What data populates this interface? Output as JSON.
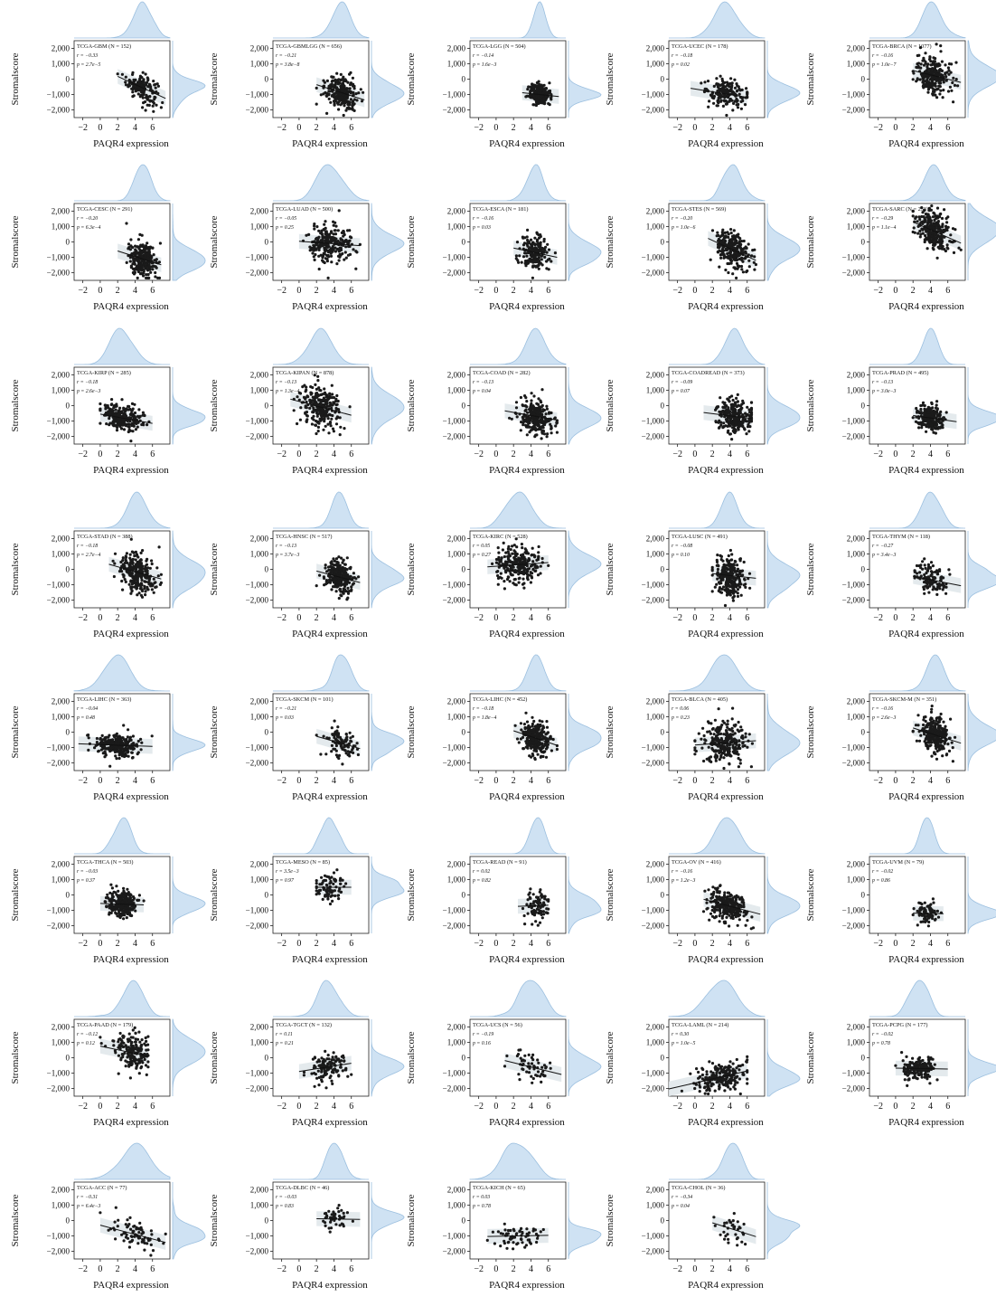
{
  "shared": {
    "ylabel": "Stromalscore",
    "xlabel": "PAQR4 expression",
    "xticks": [
      "−2",
      "0",
      "2",
      "4",
      "6"
    ],
    "yticks": [
      "2,000",
      "1,000",
      "0",
      "−1,000",
      "−2,000"
    ],
    "colors": {
      "point": "#1a1a1a",
      "band": "#dfe6ea",
      "density_fill": "#cfe2f3",
      "density_stroke": "#9bbfdf",
      "line": "#111111"
    }
  },
  "chart_data": [
    {
      "type": "scatter",
      "title": "TCGA-GBM",
      "n": "(N = 152)",
      "r": "r = −0.33",
      "p": "p = 2.7e−5",
      "xlim": [
        -3,
        8
      ],
      "ylim": [
        -2500,
        2500
      ],
      "x_range": [
        2,
        7.5
      ],
      "x_mean": 4.8,
      "x_sd": 0.9,
      "y_mean": -500,
      "y_sd": 450,
      "slope": -260,
      "intercept": 700
    },
    {
      "type": "scatter",
      "title": "TCGA-GBMLGG",
      "n": "(N = 656)",
      "r": "r = −0.21",
      "p": "p = 3.8e−8",
      "xlim": [
        -3,
        8
      ],
      "ylim": [
        -2500,
        2500
      ],
      "x_range": [
        2,
        7.5
      ],
      "x_mean": 4.8,
      "x_sd": 0.9,
      "y_mean": -800,
      "y_sd": 550,
      "slope": -180,
      "intercept": 0
    },
    {
      "type": "scatter",
      "title": "TCGA-LGG",
      "n": "(N = 504)",
      "r": "r = −0.14",
      "p": "p = 1.6e−3",
      "xlim": [
        -3,
        8
      ],
      "ylim": [
        -2500,
        2500
      ],
      "x_range": [
        3,
        7.2
      ],
      "x_mean": 5.0,
      "x_sd": 0.6,
      "y_mean": -1000,
      "y_sd": 320,
      "slope": -60,
      "intercept": -700
    },
    {
      "type": "scatter",
      "title": "TCGA-UCEC",
      "n": "(N = 178)",
      "r": "r = −0.18",
      "p": "p = 0.02",
      "xlim": [
        -3,
        8
      ],
      "ylim": [
        -2500,
        2500
      ],
      "x_range": [
        -0.5,
        6
      ],
      "x_mean": 3.5,
      "x_sd": 1.2,
      "y_mean": -950,
      "y_sd": 450,
      "slope": -90,
      "intercept": -640
    },
    {
      "type": "scatter",
      "title": "TCGA-BRCA",
      "n": "(N = 1077)",
      "r": "r = −0.16",
      "p": "p = 1.0e−7",
      "xlim": [
        -3,
        8
      ],
      "ylim": [
        -2500,
        2500
      ],
      "x_range": [
        2,
        7.5
      ],
      "x_mean": 4.2,
      "x_sd": 1.0,
      "y_mean": 250,
      "y_sd": 650,
      "slope": -140,
      "intercept": 840
    },
    {
      "type": "scatter",
      "title": "TCGA-CESC",
      "n": "(N = 291)",
      "r": "r = −0.20",
      "p": "p = 6.3e−4",
      "xlim": [
        -3,
        8
      ],
      "ylim": [
        -2500,
        2500
      ],
      "x_range": [
        2,
        7
      ],
      "x_mean": 4.8,
      "x_sd": 0.8,
      "y_mean": -1100,
      "y_sd": 550,
      "slope": -180,
      "intercept": -230
    },
    {
      "type": "scatter",
      "title": "TCGA-LUAD",
      "n": "(N = 500)",
      "r": "r = −0.05",
      "p": "p = 0.25",
      "xlim": [
        -3,
        8
      ],
      "ylim": [
        -2500,
        2500
      ],
      "x_range": [
        0,
        7
      ],
      "x_mean": 3.5,
      "x_sd": 1.2,
      "y_mean": -100,
      "y_sd": 550,
      "slope": -40,
      "intercept": 40
    },
    {
      "type": "scatter",
      "title": "TCGA-ESCA",
      "n": "(N = 181)",
      "r": "r = −0.16",
      "p": "p = 0.03",
      "xlim": [
        -3,
        8
      ],
      "ylim": [
        -2500,
        2500
      ],
      "x_range": [
        2,
        7
      ],
      "x_mean": 4.5,
      "x_sd": 0.8,
      "y_mean": -700,
      "y_sd": 550,
      "slope": -120,
      "intercept": -160
    },
    {
      "type": "scatter",
      "title": "TCGA-STES",
      "n": "(N = 569)",
      "r": "r = −0.20",
      "p": "p = 1.0e−6",
      "xlim": [
        -3,
        8
      ],
      "ylim": [
        -2500,
        2500
      ],
      "x_range": [
        1.5,
        7
      ],
      "x_mean": 4.3,
      "x_sd": 0.9,
      "y_mean": -500,
      "y_sd": 650,
      "slope": -260,
      "intercept": 620
    },
    {
      "type": "scatter",
      "title": "TCGA-SARC",
      "n": "(N = 258)",
      "r": "r = −0.29",
      "p": "p = 1.1e−4",
      "xlim": [
        -3,
        8
      ],
      "ylim": [
        -2500,
        2500
      ],
      "x_range": [
        2,
        7.5
      ],
      "x_mean": 4.4,
      "x_sd": 1.0,
      "y_mean": 700,
      "y_sd": 600,
      "slope": -250,
      "intercept": 1800
    },
    {
      "type": "scatter",
      "title": "TCGA-KIRP",
      "n": "(N = 285)",
      "r": "r = −0.18",
      "p": "p = 2.6e−3",
      "xlim": [
        -3,
        8
      ],
      "ylim": [
        -2500,
        2500
      ],
      "x_range": [
        0,
        6
      ],
      "x_mean": 2.5,
      "x_sd": 1.1,
      "y_mean": -800,
      "y_sd": 400,
      "slope": -100,
      "intercept": -550
    },
    {
      "type": "scatter",
      "title": "TCGA-KIPAN",
      "n": "(N = 878)",
      "r": "r = −0.13",
      "p": "p = 1.3e−4",
      "xlim": [
        -3,
        8
      ],
      "ylim": [
        -2500,
        2500
      ],
      "x_range": [
        -1,
        6
      ],
      "x_mean": 2.5,
      "x_sd": 1.2,
      "y_mean": -100,
      "y_sd": 700,
      "slope": -150,
      "intercept": 275
    },
    {
      "type": "scatter",
      "title": "TCGA-COAD",
      "n": "(N = 282)",
      "r": "r = −0.13",
      "p": "p = 0.04",
      "xlim": [
        -3,
        8
      ],
      "ylim": [
        -2500,
        2500
      ],
      "x_range": [
        1,
        7
      ],
      "x_mean": 4.6,
      "x_sd": 1.0,
      "y_mean": -700,
      "y_sd": 550,
      "slope": -100,
      "intercept": -240
    },
    {
      "type": "scatter",
      "title": "TCGA-COADREAD",
      "n": "(N = 373)",
      "r": "r = −0.09",
      "p": "p = 0.07",
      "xlim": [
        -3,
        8
      ],
      "ylim": [
        -2500,
        2500
      ],
      "x_range": [
        1,
        6.5
      ],
      "x_mean": 4.6,
      "x_sd": 1.0,
      "y_mean": -700,
      "y_sd": 550,
      "slope": -70,
      "intercept": -380
    },
    {
      "type": "scatter",
      "title": "TCGA-PRAD",
      "n": "(N = 495)",
      "r": "r = −0.13",
      "p": "p = 3.0e−3",
      "xlim": [
        -3,
        8
      ],
      "ylim": [
        -2500,
        2500
      ],
      "x_range": [
        2,
        7
      ],
      "x_mean": 4.0,
      "x_sd": 0.8,
      "y_mean": -800,
      "y_sd": 350,
      "slope": -80,
      "intercept": -480
    },
    {
      "type": "scatter",
      "title": "TCGA-STAD",
      "n": "(N = 388)",
      "r": "r = −0.18",
      "p": "p = 2.7e−4",
      "xlim": [
        -3,
        8
      ],
      "ylim": [
        -2500,
        2500
      ],
      "x_range": [
        1,
        7
      ],
      "x_mean": 4.3,
      "x_sd": 1.0,
      "y_mean": -200,
      "y_sd": 650,
      "slope": -160,
      "intercept": 490
    },
    {
      "type": "scatter",
      "title": "TCGA-HNSC",
      "n": "(N = 517)",
      "r": "r = −0.13",
      "p": "p = 3.7e−3",
      "xlim": [
        -3,
        8
      ],
      "ylim": [
        -2500,
        2500
      ],
      "x_range": [
        2,
        7
      ],
      "x_mean": 4.6,
      "x_sd": 0.8,
      "y_mean": -500,
      "y_sd": 550,
      "slope": -150,
      "intercept": 190
    },
    {
      "type": "scatter",
      "title": "TCGA-KIRC",
      "n": "(N = 528)",
      "r": "r = 0.05",
      "p": "p = 0.27",
      "xlim": [
        -3,
        8
      ],
      "ylim": [
        -2500,
        2500
      ],
      "x_range": [
        -1,
        6
      ],
      "x_mean": 2.5,
      "x_sd": 1.2,
      "y_mean": 300,
      "y_sd": 550,
      "slope": 40,
      "intercept": 200
    },
    {
      "type": "scatter",
      "title": "TCGA-LUSC",
      "n": "(N = 491)",
      "r": "r = −0.08",
      "p": "p = 0.10",
      "xlim": [
        -3,
        8
      ],
      "ylim": [
        -2500,
        2500
      ],
      "x_range": [
        2,
        7
      ],
      "x_mean": 4.0,
      "x_sd": 0.8,
      "y_mean": -400,
      "y_sd": 650,
      "slope": -60,
      "intercept": -160
    },
    {
      "type": "scatter",
      "title": "TCGA-THYM",
      "n": "(N = 118)",
      "r": "r = −0.27",
      "p": "p = 3.4e−3",
      "xlim": [
        -3,
        8
      ],
      "ylim": [
        -2500,
        2500
      ],
      "x_range": [
        2,
        7.5
      ],
      "x_mean": 4.2,
      "x_sd": 1.0,
      "y_mean": -700,
      "y_sd": 450,
      "slope": -110,
      "intercept": -240
    },
    {
      "type": "scatter",
      "title": "TCGA-LIHC",
      "n": "(N = 363)",
      "r": "r = −0.04",
      "p": "p = 0.48",
      "xlim": [
        -3,
        8
      ],
      "ylim": [
        -2500,
        2500
      ],
      "x_range": [
        -2.5,
        6
      ],
      "x_mean": 2.0,
      "x_sd": 1.3,
      "y_mean": -850,
      "y_sd": 350,
      "slope": -20,
      "intercept": -810
    },
    {
      "type": "scatter",
      "title": "TCGA-SKCM",
      "n": "(N = 101)",
      "r": "r = −0.21",
      "p": "p = 0.03",
      "xlim": [
        -3,
        8
      ],
      "ylim": [
        -2500,
        2500
      ],
      "x_range": [
        2,
        7
      ],
      "x_mean": 4.7,
      "x_sd": 0.9,
      "y_mean": -700,
      "y_sd": 450,
      "slope": -160,
      "intercept": 50
    },
    {
      "type": "scatter",
      "title": "TCGA-LIHC",
      "n": "(N = 452)",
      "r": "r = −0.18",
      "p": "p = 1.8e−4",
      "xlim": [
        -3,
        8
      ],
      "ylim": [
        -2500,
        2500
      ],
      "x_range": [
        2,
        7
      ],
      "x_mean": 4.6,
      "x_sd": 0.8,
      "y_mean": -400,
      "y_sd": 550,
      "slope": -190,
      "intercept": 470
    },
    {
      "type": "scatter",
      "title": "TCGA-BLCA",
      "n": "(N = 405)",
      "r": "r = 0.06",
      "p": "p = 0.23",
      "xlim": [
        -3,
        8
      ],
      "ylim": [
        -2500,
        2500
      ],
      "x_range": [
        0,
        7
      ],
      "x_mean": 3.5,
      "x_sd": 1.3,
      "y_mean": -700,
      "y_sd": 650,
      "slope": 40,
      "intercept": -840
    },
    {
      "type": "scatter",
      "title": "TCGA-SKCM-M",
      "n": "(N = 351)",
      "r": "r = −0.16",
      "p": "p = 2.6e−3",
      "xlim": [
        -3,
        8
      ],
      "ylim": [
        -2500,
        2500
      ],
      "x_range": [
        2,
        7.5
      ],
      "x_mean": 4.6,
      "x_sd": 0.9,
      "y_mean": -200,
      "y_sd": 600,
      "slope": -180,
      "intercept": 630
    },
    {
      "type": "scatter",
      "title": "TCGA-THCA",
      "n": "(N = 503)",
      "r": "r = −0.03",
      "p": "p = 0.37",
      "xlim": [
        -3,
        8
      ],
      "ylim": [
        -2500,
        2500
      ],
      "x_range": [
        0,
        5
      ],
      "x_mean": 2.5,
      "x_sd": 0.9,
      "y_mean": -600,
      "y_sd": 400,
      "slope": -20,
      "intercept": -550
    },
    {
      "type": "scatter",
      "title": "TCGA-MESO",
      "n": "(N = 85)",
      "r": "r = 3.5e−3",
      "p": "p = 0.97",
      "xlim": [
        -3,
        8
      ],
      "ylim": [
        -2500,
        2500
      ],
      "x_range": [
        2,
        6
      ],
      "x_mean": 3.5,
      "x_sd": 0.8,
      "y_mean": 500,
      "y_sd": 450,
      "slope": 0,
      "intercept": 500
    },
    {
      "type": "scatter",
      "title": "TCGA-READ",
      "n": "(N = 91)",
      "r": "r = 0.02",
      "p": "p = 0.82",
      "xlim": [
        -3,
        8
      ],
      "ylim": [
        -2500,
        2500
      ],
      "x_range": [
        2.5,
        6
      ],
      "x_mean": 4.6,
      "x_sd": 0.8,
      "y_mean": -700,
      "y_sd": 550,
      "slope": 20,
      "intercept": -790
    },
    {
      "type": "scatter",
      "title": "TCGA-OV",
      "n": "(N = 416)",
      "r": "r = −0.16",
      "p": "p = 1.2e−3",
      "xlim": [
        -3,
        8
      ],
      "ylim": [
        -2500,
        2500
      ],
      "x_range": [
        1,
        7.5
      ],
      "x_mean": 3.8,
      "x_sd": 1.1,
      "y_mean": -700,
      "y_sd": 550,
      "slope": -150,
      "intercept": -130
    },
    {
      "type": "scatter",
      "title": "TCGA-UVM",
      "n": "(N = 79)",
      "r": "r = −0.02",
      "p": "p = 0.86",
      "xlim": [
        -3,
        8
      ],
      "ylim": [
        -2500,
        2500
      ],
      "x_range": [
        2,
        5.5
      ],
      "x_mean": 3.5,
      "x_sd": 0.7,
      "y_mean": -1200,
      "y_sd": 300,
      "slope": -10,
      "intercept": -1165
    },
    {
      "type": "scatter",
      "title": "TCGA-PAAD",
      "n": "(N = 179)",
      "r": "r = −0.12",
      "p": "p = 0.12",
      "xlim": [
        -3,
        8
      ],
      "ylim": [
        -2500,
        2500
      ],
      "x_range": [
        0,
        5.5
      ],
      "x_mean": 3.8,
      "x_sd": 1.1,
      "y_mean": 300,
      "y_sd": 650,
      "slope": -120,
      "intercept": 756
    },
    {
      "type": "scatter",
      "title": "TCGA-TGCT",
      "n": "(N = 132)",
      "r": "r = 0.11",
      "p": "p = 0.21",
      "xlim": [
        -3,
        8
      ],
      "ylim": [
        -2500,
        2500
      ],
      "x_range": [
        0,
        6
      ],
      "x_mean": 3.3,
      "x_sd": 1.0,
      "y_mean": -600,
      "y_sd": 500,
      "slope": 90,
      "intercept": -897
    },
    {
      "type": "scatter",
      "title": "TCGA-UCS",
      "n": "(N = 56)",
      "r": "r = −0.19",
      "p": "p = 0.16",
      "xlim": [
        -3,
        8
      ],
      "ylim": [
        -2500,
        2500
      ],
      "x_range": [
        1,
        7.5
      ],
      "x_mean": 4.0,
      "x_sd": 1.2,
      "y_mean": -600,
      "y_sd": 550,
      "slope": -140,
      "intercept": -40
    },
    {
      "type": "scatter",
      "title": "TCGA-LAML",
      "n": "(N = 214)",
      "r": "r = 0.30",
      "p": "p = 1.0e−5",
      "xlim": [
        -3,
        8
      ],
      "ylim": [
        -2500,
        2500
      ],
      "x_range": [
        -3,
        6
      ],
      "x_mean": 3.0,
      "x_sd": 1.4,
      "y_mean": -1250,
      "y_sd": 450,
      "slope": 130,
      "intercept": -1640
    },
    {
      "type": "scatter",
      "title": "TCGA-PCPG",
      "n": "(N = 177)",
      "r": "r = −0.02",
      "p": "p = 0.78",
      "xlim": [
        -3,
        8
      ],
      "ylim": [
        -2500,
        2500
      ],
      "x_range": [
        0,
        6
      ],
      "x_mean": 2.6,
      "x_sd": 0.9,
      "y_mean": -700,
      "y_sd": 350,
      "slope": -10,
      "intercept": -674
    },
    {
      "type": "scatter",
      "title": "TCGA-ACC",
      "n": "(N = 77)",
      "r": "r = −0.31",
      "p": "p = 6.4e−3",
      "xlim": [
        -3,
        8
      ],
      "ylim": [
        -2500,
        2500
      ],
      "x_range": [
        0,
        7.5
      ],
      "x_mean": 4.0,
      "x_sd": 1.5,
      "y_mean": -900,
      "y_sd": 450,
      "slope": -150,
      "intercept": -300
    },
    {
      "type": "scatter",
      "title": "TCGA-DLBC",
      "n": "(N = 46)",
      "r": "r = −0.03",
      "p": "p = 0.83",
      "xlim": [
        -3,
        8
      ],
      "ylim": [
        -2500,
        2500
      ],
      "x_range": [
        2,
        7
      ],
      "x_mean": 4.0,
      "x_sd": 0.9,
      "y_mean": 100,
      "y_sd": 450,
      "slope": -10,
      "intercept": 140
    },
    {
      "type": "scatter",
      "title": "TCGA-KICH",
      "n": "(N = 65)",
      "r": "r = 0.03",
      "p": "p = 0.78",
      "xlim": [
        -3,
        8
      ],
      "ylim": [
        -2500,
        2500
      ],
      "x_range": [
        -1,
        6
      ],
      "x_mean": 2.5,
      "x_sd": 1.3,
      "y_mean": -1000,
      "y_sd": 400,
      "slope": 10,
      "intercept": -1025
    },
    {
      "type": "scatter",
      "title": "TCGA-CHOL",
      "n": "(N = 36)",
      "r": "r = −0.34",
      "p": "p = 0.04",
      "xlim": [
        -3,
        8
      ],
      "ylim": [
        -2500,
        2500
      ],
      "x_range": [
        2,
        7
      ],
      "x_mean": 4.5,
      "x_sd": 1.0,
      "y_mean": -600,
      "y_sd": 450,
      "slope": -180,
      "intercept": 210
    }
  ]
}
